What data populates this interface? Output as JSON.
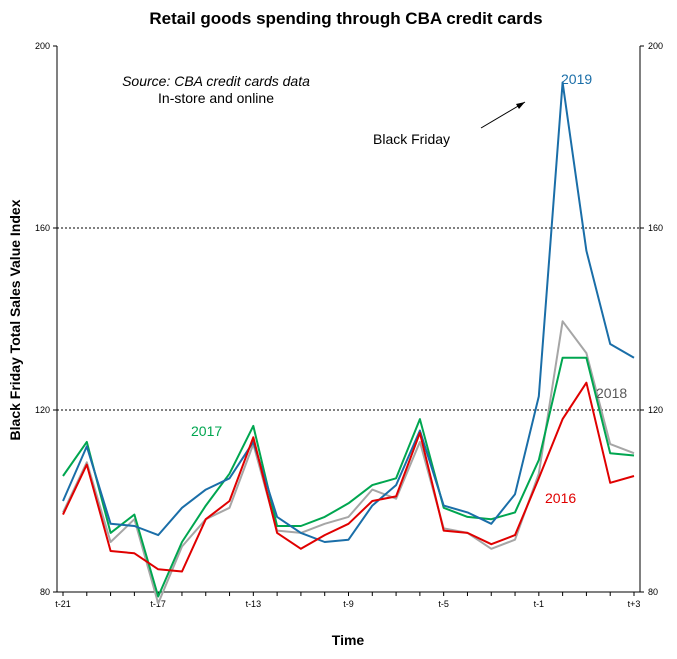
{
  "chart_data": {
    "type": "line",
    "title": "Retail goods spending through CBA credit cards",
    "xlabel": "Time",
    "ylabel": "Black Friday Total Sales Value Index",
    "ylim": [
      80,
      200
    ],
    "yticks": [
      80,
      120,
      160,
      200
    ],
    "x": [
      "t-21",
      "t-20",
      "t-19",
      "t-18",
      "t-17",
      "t-16",
      "t-15",
      "t-14",
      "t-13",
      "t-12",
      "t-11",
      "t-10",
      "t-9",
      "t-8",
      "t-7",
      "t-6",
      "t-5",
      "t-4",
      "t-3",
      "t-2",
      "t-1",
      "t0",
      "t+1",
      "t+2",
      "t+3"
    ],
    "x_tick_labels": [
      "t-21",
      "t-17",
      "t-13",
      "t-9",
      "t-5",
      "t-1",
      "t+3"
    ],
    "grid": "horizontal dashed lines at 120 and 160",
    "series": [
      {
        "name": "2016",
        "color": "#e00000",
        "label_value": "2016",
        "values": [
          97,
          108,
          89,
          88.5,
          85,
          84.5,
          96,
          100,
          114,
          93,
          89.5,
          92.5,
          95,
          100,
          101,
          115,
          93.5,
          93,
          90.5,
          92.5,
          105,
          118,
          126,
          104,
          105.5
        ]
      },
      {
        "name": "2017",
        "color": "#00a650",
        "label_value": "2017",
        "values": [
          105.5,
          113,
          93,
          97,
          79,
          91,
          99,
          106,
          116.5,
          94.5,
          94.5,
          96.5,
          99.5,
          103.5,
          105,
          118,
          98.5,
          96.5,
          96,
          97.5,
          109,
          131.5,
          131.5,
          110.5,
          110
        ]
      },
      {
        "name": "2018",
        "color": "#a6a6a6",
        "label_value": "2018",
        "values": [
          97.5,
          108.5,
          91,
          96,
          77.5,
          90,
          96,
          98.5,
          112.5,
          93.5,
          93,
          95,
          96.5,
          102.5,
          100.5,
          113,
          94,
          93,
          89.5,
          91.5,
          106,
          139.5,
          132.5,
          112.5,
          110.5
        ]
      },
      {
        "name": "2019",
        "color": "#1a6ea8",
        "label_value": "2019",
        "values": [
          100,
          112,
          95,
          94.5,
          92.5,
          98.5,
          102.5,
          105,
          113,
          96.5,
          93,
          91,
          91.5,
          99,
          103.5,
          115.5,
          99,
          97.5,
          95,
          101.5,
          123,
          192,
          155,
          134.5,
          131.5
        ]
      }
    ],
    "annotations": {
      "source_line1": "Source: CBA credit cards data",
      "source_line2": "In-store and online",
      "black_friday": "Black Friday"
    }
  }
}
